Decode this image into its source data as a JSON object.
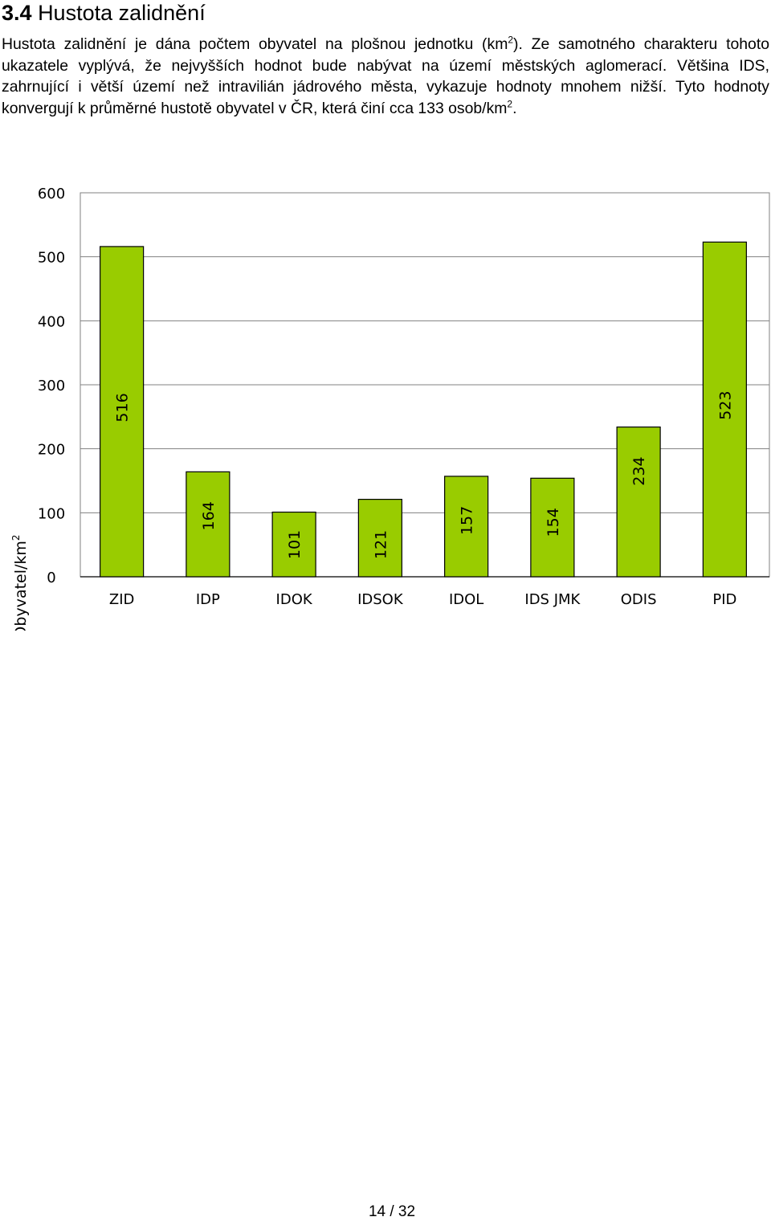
{
  "document": {
    "section_number": "3.4",
    "section_title": "Hustota zalidnění",
    "paragraph": {
      "part1": "Hustota zalidnění je dána počtem obyvatel na plošnou jednotku (km",
      "sup1": "2",
      "part2": "). Ze samotného charakteru tohoto ukazatele vyplývá, že nejvyšších hodnot bude nabývat na území městských aglomerací. Většina IDS, zahrnující i větší území než intravilián jádrového města, vykazuje hodnoty mnohem nižší. Tyto hodnoty konvergují k průměrné hustotě obyvatel v ČR, která činí cca 133 osob/km",
      "sup2": "2",
      "part3": "."
    },
    "page_number": "14 / 32"
  },
  "chart_data": {
    "type": "bar",
    "categories": [
      "ZID",
      "IDP",
      "IDOK",
      "IDSOK",
      "IDOL",
      "IDS JMK",
      "ODIS",
      "PID"
    ],
    "values": [
      516,
      164,
      101,
      121,
      157,
      154,
      234,
      523
    ],
    "ylabel": "Obyvatel/km",
    "ylabel_sup": "2",
    "ylim": [
      0,
      600
    ],
    "yticks": [
      0,
      100,
      200,
      300,
      400,
      500,
      600
    ],
    "grid": true,
    "legend": "none",
    "bar_color": "#99cc00",
    "bar_edge_color": "#000000",
    "grid_color": "#808080"
  }
}
